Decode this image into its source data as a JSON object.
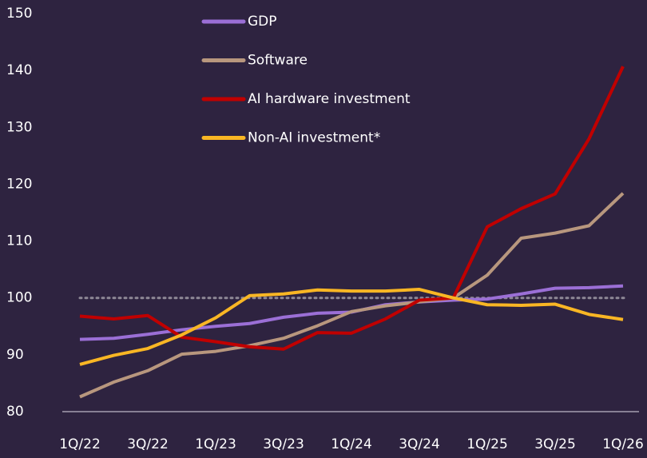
{
  "chart_data": {
    "type": "line",
    "categories": [
      "1Q/22",
      null,
      "3Q/22",
      null,
      "1Q/23",
      null,
      "3Q/23",
      null,
      "1Q/24",
      null,
      "3Q/24",
      null,
      "1Q/25",
      null,
      "3Q/25",
      null,
      "1Q/26"
    ],
    "series": [
      {
        "name": "GDP",
        "color": "#9b6fd6",
        "values": [
          92.7,
          92.9,
          93.6,
          94.4,
          95.0,
          95.5,
          96.6,
          97.3,
          97.5,
          98.8,
          99.3,
          99.6,
          99.8,
          100.7,
          101.7,
          101.8,
          102.1
        ]
      },
      {
        "name": "Software",
        "color": "#b8977e",
        "values": [
          82.6,
          85.2,
          87.2,
          90.1,
          90.6,
          91.6,
          92.9,
          95.1,
          97.6,
          98.6,
          99.3,
          100.0,
          104.0,
          110.5,
          111.4,
          112.7,
          118.4
        ]
      },
      {
        "name": "AI hardware investment",
        "color": "#c00000",
        "values": [
          96.8,
          96.3,
          96.9,
          93.1,
          92.3,
          91.4,
          91.0,
          93.9,
          93.8,
          96.3,
          99.6,
          100.0,
          112.5,
          115.7,
          118.3,
          128.0,
          140.7
        ]
      },
      {
        "name": "Non-AI investment*",
        "color": "#f9b624",
        "values": [
          88.3,
          89.9,
          91.1,
          93.5,
          96.5,
          100.4,
          100.7,
          101.4,
          101.2,
          101.2,
          101.5,
          100.0,
          98.8,
          98.7,
          98.9,
          97.1,
          96.2
        ]
      }
    ],
    "reference_line": 100,
    "ylim": [
      80,
      150
    ],
    "yticks": [
      80,
      90,
      100,
      110,
      120,
      130,
      140,
      150
    ],
    "legend": "top"
  }
}
